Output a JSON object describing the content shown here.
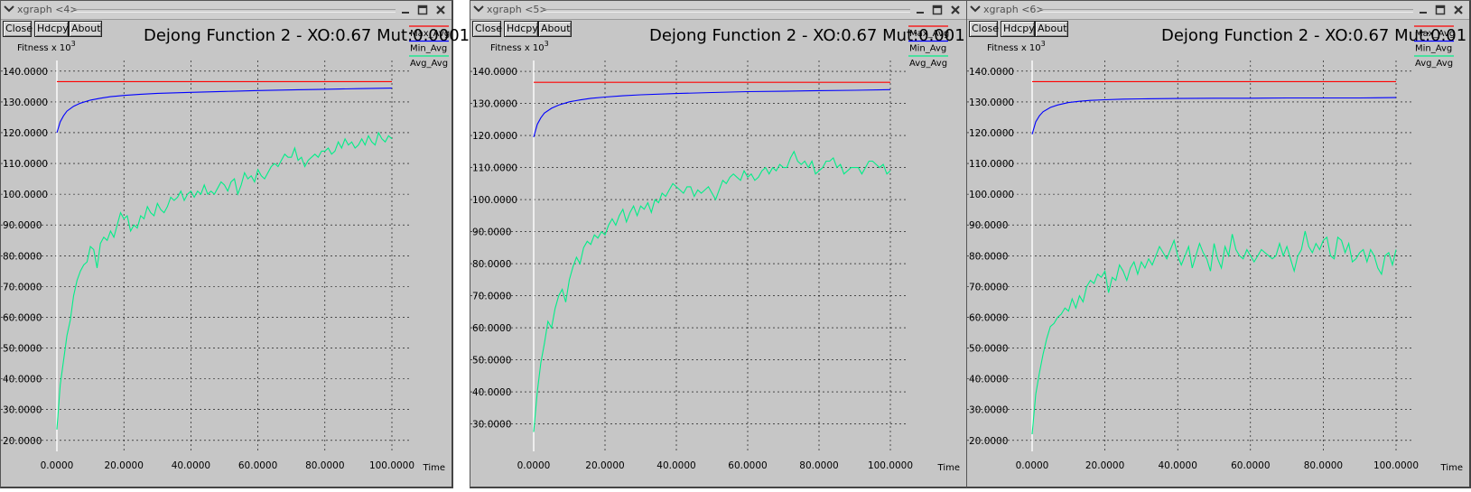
{
  "windows": [
    {
      "title": "xgraph <4>",
      "buttons": {
        "close": "Close",
        "hdcpy": "Hdcpy",
        "about": "About"
      }
    },
    {
      "title": "xgraph <5>",
      "buttons": {
        "close": "Close",
        "hdcpy": "Hdcpy",
        "about": "About"
      }
    },
    {
      "title": "xgraph <6>",
      "buttons": {
        "close": "Close",
        "hdcpy": "Hdcpy",
        "about": "About"
      }
    }
  ],
  "colors": {
    "window_bg": "#c6c6c6",
    "axis": "#ffffff",
    "grid": "#000000",
    "max_avg": "#ff0000",
    "min_avg": "#0000ff",
    "avg_avg": "#00ee88"
  },
  "chart_data": [
    {
      "type": "line",
      "title": "Dejong Function 2 - XO:0.67 Mut:0.0001",
      "ylabel": "Fitness x 10",
      "ylabel_exp": "3",
      "xlabel": "Time",
      "xlim": [
        0,
        100
      ],
      "ylim": [
        17,
        142
      ],
      "x_ticks": [
        "0.0000",
        "20.0000",
        "40.0000",
        "60.0000",
        "80.0000",
        "100.0000"
      ],
      "y_ticks": [
        "20.0000",
        "30.0000",
        "40.0000",
        "50.0000",
        "60.0000",
        "70.0000",
        "80.0000",
        "90.0000",
        "100.0000",
        "110.0000",
        "120.0000",
        "130.0000",
        "140.0000"
      ],
      "grid": true,
      "legend_position": "right",
      "series": [
        {
          "name": "Max_Avg",
          "x": [
            0,
            100
          ],
          "y": [
            136.6,
            136.6
          ]
        },
        {
          "name": "Min_Avg",
          "x": [
            0,
            1,
            2,
            3,
            5,
            7,
            10,
            13,
            16,
            20,
            25,
            30,
            40,
            50,
            60,
            70,
            80,
            90,
            100
          ],
          "y": [
            120,
            123.5,
            125.5,
            127,
            128.6,
            129.6,
            130.6,
            131.2,
            131.7,
            132.1,
            132.5,
            132.8,
            133.1,
            133.4,
            133.7,
            133.9,
            134.1,
            134.3,
            134.5
          ]
        },
        {
          "name": "Avg_Avg",
          "x": [
            0,
            1,
            2,
            3,
            4,
            5,
            6,
            7,
            8,
            9,
            10,
            11,
            12,
            13,
            14,
            15,
            16,
            17,
            18,
            19,
            20,
            21,
            22,
            23,
            24,
            25,
            26,
            27,
            28,
            29,
            30,
            31,
            32,
            33,
            34,
            35,
            36,
            37,
            38,
            39,
            40,
            41,
            42,
            43,
            44,
            45,
            46,
            47,
            48,
            49,
            50,
            51,
            52,
            53,
            54,
            55,
            56,
            57,
            58,
            59,
            60,
            61,
            62,
            63,
            64,
            65,
            66,
            67,
            68,
            69,
            70,
            71,
            72,
            73,
            74,
            75,
            76,
            77,
            78,
            79,
            80,
            81,
            82,
            83,
            84,
            85,
            86,
            87,
            88,
            89,
            90,
            91,
            92,
            93,
            94,
            95,
            96,
            97,
            98,
            99,
            100
          ],
          "y": [
            23.5,
            38,
            46,
            54,
            59,
            67,
            72,
            75,
            77,
            78,
            83,
            82,
            76,
            84,
            86,
            85,
            88,
            86,
            90,
            94,
            92,
            93,
            88,
            90,
            89,
            93,
            92,
            96,
            94,
            93,
            97,
            95,
            94,
            96,
            99,
            98,
            99,
            101,
            98,
            100,
            101,
            99,
            101,
            100,
            103,
            100,
            101,
            100,
            102,
            104,
            103,
            101,
            104,
            105,
            100,
            103,
            107,
            105,
            106,
            104,
            108,
            106,
            105,
            107,
            109,
            110,
            109,
            111,
            113,
            112,
            112,
            115,
            111,
            112,
            109,
            111,
            112,
            113,
            112,
            114,
            114,
            115,
            113,
            114,
            117,
            115,
            118,
            116,
            117,
            115,
            116,
            118,
            116,
            119,
            117,
            116,
            120,
            118,
            117,
            119,
            118
          ]
        }
      ]
    },
    {
      "type": "line",
      "title": "Dejong Function 2 - XO:0.67 Mut:0.001",
      "ylabel": "Fitness x 10",
      "ylabel_exp": "3",
      "xlabel": "Time",
      "xlim": [
        0,
        100
      ],
      "ylim": [
        22,
        142
      ],
      "x_ticks": [
        "0.0000",
        "20.0000",
        "40.0000",
        "60.0000",
        "80.0000",
        "100.0000"
      ],
      "y_ticks": [
        "30.0000",
        "40.0000",
        "50.0000",
        "60.0000",
        "70.0000",
        "80.0000",
        "90.0000",
        "100.0000",
        "110.0000",
        "120.0000",
        "130.0000",
        "140.0000"
      ],
      "grid": true,
      "legend_position": "right",
      "series": [
        {
          "name": "Max_Avg",
          "x": [
            0,
            100
          ],
          "y": [
            136.6,
            136.6
          ]
        },
        {
          "name": "Min_Avg",
          "x": [
            0,
            1,
            2,
            3,
            5,
            7,
            10,
            13,
            16,
            20,
            25,
            30,
            40,
            50,
            60,
            70,
            80,
            90,
            100
          ],
          "y": [
            119.5,
            123.5,
            125.5,
            127,
            128.5,
            129.5,
            130.5,
            131.1,
            131.6,
            132,
            132.4,
            132.7,
            133.1,
            133.4,
            133.7,
            133.8,
            134,
            134.1,
            134.3
          ]
        },
        {
          "name": "Avg_Avg",
          "x": [
            0,
            1,
            2,
            3,
            4,
            5,
            6,
            7,
            8,
            9,
            10,
            11,
            12,
            13,
            14,
            15,
            16,
            17,
            18,
            19,
            20,
            21,
            22,
            23,
            24,
            25,
            26,
            27,
            28,
            29,
            30,
            31,
            32,
            33,
            34,
            35,
            36,
            37,
            38,
            39,
            40,
            41,
            42,
            43,
            44,
            45,
            46,
            47,
            48,
            49,
            50,
            51,
            52,
            53,
            54,
            55,
            56,
            57,
            58,
            59,
            60,
            61,
            62,
            63,
            64,
            65,
            66,
            67,
            68,
            69,
            70,
            71,
            72,
            73,
            74,
            75,
            76,
            77,
            78,
            79,
            80,
            81,
            82,
            83,
            84,
            85,
            86,
            87,
            88,
            89,
            90,
            91,
            92,
            93,
            94,
            95,
            96,
            97,
            98,
            99,
            100
          ],
          "y": [
            27.5,
            40,
            49,
            55,
            62,
            60,
            66,
            70,
            72,
            68,
            75,
            79,
            82,
            80,
            85,
            87,
            86,
            89,
            88,
            90,
            89,
            92,
            94,
            92,
            95,
            97,
            93,
            96,
            98,
            95,
            98,
            97,
            99,
            96,
            100,
            99,
            102,
            101,
            103,
            105,
            104,
            103,
            102,
            104,
            104,
            101,
            103,
            102,
            103,
            104,
            102,
            100,
            103,
            106,
            105,
            107,
            108,
            107,
            106,
            109,
            107,
            108,
            106,
            107,
            109,
            110,
            108,
            110,
            109,
            111,
            110,
            110,
            113,
            115,
            112,
            111,
            112,
            110,
            112,
            108,
            109,
            110,
            112,
            112,
            113,
            110,
            111,
            108,
            109,
            110,
            110,
            110,
            108,
            110,
            112,
            112,
            111,
            110,
            111,
            108,
            109
          ]
        }
      ]
    },
    {
      "type": "line",
      "title": "Dejong Function 2 - XO:0.67 Mut:0.01",
      "ylabel": "Fitness x 10",
      "ylabel_exp": "3",
      "xlabel": "Time",
      "xlim": [
        0,
        100
      ],
      "ylim": [
        17,
        142
      ],
      "x_ticks": [
        "0.0000",
        "20.0000",
        "40.0000",
        "60.0000",
        "80.0000",
        "100.0000"
      ],
      "y_ticks": [
        "20.0000",
        "30.0000",
        "40.0000",
        "50.0000",
        "60.0000",
        "70.0000",
        "80.0000",
        "90.0000",
        "100.0000",
        "110.0000",
        "120.0000",
        "130.0000",
        "140.0000"
      ],
      "grid": true,
      "legend_position": "right",
      "series": [
        {
          "name": "Max_Avg",
          "x": [
            0,
            100
          ],
          "y": [
            136.6,
            136.6
          ]
        },
        {
          "name": "Min_Avg",
          "x": [
            0,
            1,
            2,
            3,
            5,
            7,
            10,
            13,
            16,
            20,
            25,
            30,
            40,
            50,
            60,
            70,
            80,
            90,
            100
          ],
          "y": [
            119.5,
            123.5,
            125.5,
            126.8,
            128.2,
            129,
            129.8,
            130.2,
            130.5,
            130.7,
            130.9,
            131,
            131.1,
            131.2,
            131.2,
            131.3,
            131.3,
            131.3,
            131.4
          ]
        },
        {
          "name": "Avg_Avg",
          "x": [
            0,
            1,
            2,
            3,
            4,
            5,
            6,
            7,
            8,
            9,
            10,
            11,
            12,
            13,
            14,
            15,
            16,
            17,
            18,
            19,
            20,
            21,
            22,
            23,
            24,
            25,
            26,
            27,
            28,
            29,
            30,
            31,
            32,
            33,
            34,
            35,
            36,
            37,
            38,
            39,
            40,
            41,
            42,
            43,
            44,
            45,
            46,
            47,
            48,
            49,
            50,
            51,
            52,
            53,
            54,
            55,
            56,
            57,
            58,
            59,
            60,
            61,
            62,
            63,
            64,
            65,
            66,
            67,
            68,
            69,
            70,
            71,
            72,
            73,
            74,
            75,
            76,
            77,
            78,
            79,
            80,
            81,
            82,
            83,
            84,
            85,
            86,
            87,
            88,
            89,
            90,
            91,
            92,
            93,
            94,
            95,
            96,
            97,
            98,
            99,
            100
          ],
          "y": [
            22,
            35,
            42,
            48,
            53,
            57,
            58,
            60,
            61,
            63,
            62,
            66,
            63,
            67,
            65,
            70,
            72,
            71,
            74,
            73,
            75,
            68,
            73,
            72,
            77,
            75,
            72,
            76,
            78,
            74,
            78,
            76,
            79,
            77,
            80,
            83,
            81,
            79,
            82,
            85,
            80,
            77,
            80,
            83,
            76,
            80,
            84,
            81,
            79,
            75,
            84,
            79,
            76,
            83,
            80,
            87,
            82,
            80,
            79,
            82,
            80,
            78,
            80,
            82,
            81,
            80,
            79,
            80,
            84,
            80,
            83,
            79,
            75,
            80,
            82,
            88,
            83,
            81,
            84,
            82,
            85,
            86,
            80,
            79,
            86,
            85,
            81,
            84,
            78,
            79,
            81,
            82,
            78,
            82,
            80,
            76,
            74,
            80,
            81,
            77,
            82
          ]
        }
      ]
    }
  ]
}
